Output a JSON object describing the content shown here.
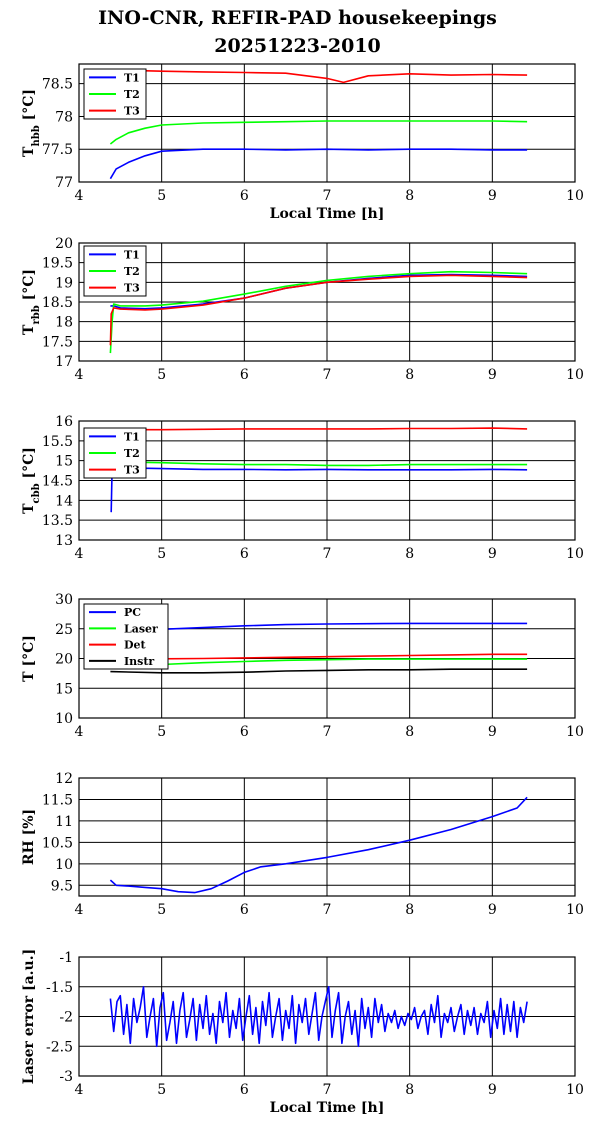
{
  "title": {
    "line1": "INO-CNR, REFIR-PAD housekeepings",
    "line2": "20251223-2010"
  },
  "chart_data": [
    {
      "type": "line",
      "ylabel_main": "T",
      "ylabel_sub": "hbb",
      "ylabel_unit": " [°C]",
      "xlabel": "Local Time [h]",
      "xlim": [
        4,
        10
      ],
      "ylim": [
        77,
        78.8
      ],
      "xticks": [
        "4",
        "5",
        "6",
        "7",
        "8",
        "9",
        "10"
      ],
      "yticks": [
        77,
        77.5,
        78,
        78.5
      ],
      "ytick_labels": [
        "77",
        "77.5",
        "78",
        "78.5"
      ],
      "legend": "top-left",
      "series": [
        {
          "name": "T1",
          "color": "#0000ff",
          "x": [
            4.38,
            4.45,
            4.6,
            4.8,
            5.0,
            5.5,
            6.0,
            6.5,
            7.0,
            7.5,
            8.0,
            8.5,
            9.0,
            9.42
          ],
          "y": [
            77.05,
            77.2,
            77.3,
            77.4,
            77.47,
            77.5,
            77.5,
            77.49,
            77.5,
            77.49,
            77.5,
            77.5,
            77.49,
            77.49
          ]
        },
        {
          "name": "T2",
          "color": "#00ff00",
          "x": [
            4.38,
            4.45,
            4.6,
            4.8,
            5.0,
            5.5,
            6.0,
            6.5,
            7.0,
            7.5,
            8.0,
            8.5,
            9.0,
            9.42
          ],
          "y": [
            77.58,
            77.65,
            77.75,
            77.82,
            77.87,
            77.9,
            77.91,
            77.92,
            77.93,
            77.93,
            77.93,
            77.93,
            77.93,
            77.92
          ]
        },
        {
          "name": "T3",
          "color": "#ff0000",
          "x": [
            4.7,
            5.0,
            5.5,
            6.0,
            6.5,
            7.0,
            7.2,
            7.5,
            8.0,
            8.5,
            9.0,
            9.42
          ],
          "y": [
            78.7,
            78.69,
            78.68,
            78.67,
            78.66,
            78.58,
            78.52,
            78.62,
            78.65,
            78.63,
            78.64,
            78.63
          ]
        }
      ]
    },
    {
      "type": "line",
      "ylabel_main": "T",
      "ylabel_sub": "rbb",
      "ylabel_unit": " [°C]",
      "xlabel": "",
      "xlim": [
        4,
        10
      ],
      "ylim": [
        17,
        20
      ],
      "xticks": [
        "4",
        "5",
        "6",
        "7",
        "8",
        "9",
        "10"
      ],
      "yticks": [
        17,
        17.5,
        18,
        18.5,
        19,
        19.5,
        20
      ],
      "ytick_labels": [
        "17",
        "17.5",
        "18",
        "18.5",
        "19",
        "19.5",
        "20"
      ],
      "legend": "top-left",
      "series": [
        {
          "name": "T1",
          "color": "#0000ff",
          "x": [
            4.38,
            4.42,
            4.5,
            4.8,
            5.0,
            5.5,
            6.0,
            6.5,
            7.0,
            7.5,
            8.0,
            8.5,
            9.0,
            9.42
          ],
          "y": [
            18.4,
            18.4,
            18.35,
            18.33,
            18.35,
            18.45,
            18.6,
            18.85,
            19.0,
            19.1,
            19.18,
            19.2,
            19.18,
            19.15
          ]
        },
        {
          "name": "T2",
          "color": "#00ff00",
          "x": [
            4.38,
            4.4,
            4.42,
            4.5,
            4.8,
            5.0,
            5.5,
            6.0,
            6.5,
            7.0,
            7.5,
            8.0,
            8.5,
            9.0,
            9.42
          ],
          "y": [
            17.2,
            18.0,
            18.45,
            18.4,
            18.4,
            18.42,
            18.52,
            18.7,
            18.9,
            19.05,
            19.15,
            19.22,
            19.27,
            19.25,
            19.22
          ]
        },
        {
          "name": "T3",
          "color": "#ff0000",
          "x": [
            4.38,
            4.39,
            4.42,
            4.5,
            4.8,
            5.0,
            5.5,
            6.0,
            6.5,
            7.0,
            7.5,
            8.0,
            8.5,
            9.0,
            9.42
          ],
          "y": [
            17.4,
            18.2,
            18.35,
            18.32,
            18.3,
            18.32,
            18.42,
            18.6,
            18.85,
            19.0,
            19.08,
            19.15,
            19.18,
            19.15,
            19.12
          ]
        }
      ]
    },
    {
      "type": "line",
      "ylabel_main": "T",
      "ylabel_sub": "cbb",
      "ylabel_unit": " [°C]",
      "xlabel": "",
      "xlim": [
        4,
        10
      ],
      "ylim": [
        13,
        16
      ],
      "xticks": [
        "4",
        "5",
        "6",
        "7",
        "8",
        "9",
        "10"
      ],
      "yticks": [
        13,
        13.5,
        14,
        14.5,
        15,
        15.5,
        16
      ],
      "ytick_labels": [
        "13",
        "13.5",
        "14",
        "14.5",
        "15",
        "15.5",
        "16"
      ],
      "legend": "top-left",
      "series": [
        {
          "name": "T1",
          "color": "#0000ff",
          "x": [
            4.39,
            4.4,
            4.42,
            4.5,
            5.0,
            5.5,
            6.0,
            6.5,
            7.0,
            7.5,
            8.0,
            8.5,
            9.0,
            9.42
          ],
          "y": [
            13.7,
            14.8,
            14.85,
            14.82,
            14.8,
            14.78,
            14.78,
            14.77,
            14.78,
            14.77,
            14.77,
            14.77,
            14.78,
            14.77
          ]
        },
        {
          "name": "T2",
          "color": "#00ff00",
          "x": [
            4.4,
            4.5,
            5.0,
            5.5,
            6.0,
            6.5,
            7.0,
            7.5,
            8.0,
            8.5,
            9.0,
            9.42
          ],
          "y": [
            14.95,
            14.97,
            14.95,
            14.92,
            14.9,
            14.9,
            14.88,
            14.88,
            14.9,
            14.9,
            14.9,
            14.9
          ]
        },
        {
          "name": "T3",
          "color": "#ff0000",
          "x": [
            4.8,
            5.0,
            5.5,
            6.0,
            6.5,
            7.0,
            7.5,
            8.0,
            8.5,
            9.0,
            9.42
          ],
          "y": [
            15.78,
            15.78,
            15.79,
            15.8,
            15.8,
            15.8,
            15.8,
            15.81,
            15.81,
            15.82,
            15.8
          ]
        }
      ]
    },
    {
      "type": "line",
      "ylabel_main": "T [°C]",
      "ylabel_sub": "",
      "ylabel_unit": "",
      "xlabel": "",
      "xlim": [
        4,
        10
      ],
      "ylim": [
        10,
        30
      ],
      "xticks": [
        "4",
        "5",
        "6",
        "7",
        "8",
        "9",
        "10"
      ],
      "yticks": [
        10,
        15,
        20,
        25,
        30
      ],
      "ytick_labels": [
        "10",
        "15",
        "20",
        "25",
        "30"
      ],
      "legend": "top-left",
      "series": [
        {
          "name": "PC",
          "color": "#0000ff",
          "x": [
            4.38,
            5.0,
            5.5,
            6.0,
            6.5,
            7.0,
            7.5,
            8.0,
            8.5,
            9.0,
            9.42
          ],
          "y": [
            24.4,
            24.9,
            25.2,
            25.5,
            25.7,
            25.8,
            25.85,
            25.9,
            25.9,
            25.9,
            25.9
          ]
        },
        {
          "name": "Laser",
          "color": "#00ff00",
          "x": [
            4.38,
            5.0,
            5.5,
            6.0,
            6.5,
            7.0,
            7.5,
            8.0,
            8.5,
            9.0,
            9.42
          ],
          "y": [
            19.0,
            19.0,
            19.3,
            19.5,
            19.7,
            19.8,
            19.9,
            19.9,
            19.9,
            19.9,
            19.9
          ]
        },
        {
          "name": "Det",
          "color": "#ff0000",
          "x": [
            4.38,
            5.0,
            5.5,
            6.0,
            6.5,
            7.0,
            7.5,
            8.0,
            8.5,
            9.0,
            9.42
          ],
          "y": [
            19.9,
            19.95,
            20.0,
            20.1,
            20.2,
            20.3,
            20.4,
            20.5,
            20.6,
            20.7,
            20.7
          ]
        },
        {
          "name": "Instr",
          "color": "#000000",
          "x": [
            4.38,
            5.0,
            5.5,
            6.0,
            6.5,
            7.0,
            7.5,
            8.0,
            8.5,
            9.0,
            9.42
          ],
          "y": [
            17.8,
            17.6,
            17.6,
            17.7,
            17.9,
            18.0,
            18.1,
            18.1,
            18.2,
            18.2,
            18.2
          ]
        }
      ]
    },
    {
      "type": "line",
      "ylabel_main": "RH [%]",
      "ylabel_sub": "",
      "ylabel_unit": "",
      "xlabel": "",
      "xlim": [
        4,
        10
      ],
      "ylim": [
        9.25,
        12
      ],
      "xticks": [
        "4",
        "5",
        "6",
        "7",
        "8",
        "9",
        "10"
      ],
      "yticks": [
        9.5,
        10,
        10.5,
        11,
        11.5,
        12
      ],
      "ytick_labels": [
        "9.5",
        "10",
        "10.5",
        "11",
        "11.5",
        "12"
      ],
      "legend": "none",
      "series": [
        {
          "name": "",
          "color": "#0000ff",
          "x": [
            4.38,
            4.45,
            4.6,
            4.8,
            5.0,
            5.2,
            5.4,
            5.6,
            5.8,
            6.0,
            6.2,
            6.5,
            7.0,
            7.5,
            8.0,
            8.5,
            9.0,
            9.3,
            9.42
          ],
          "y": [
            9.62,
            9.5,
            9.48,
            9.45,
            9.42,
            9.35,
            9.33,
            9.42,
            9.6,
            9.8,
            9.93,
            10.0,
            10.15,
            10.33,
            10.55,
            10.8,
            11.1,
            11.3,
            11.55
          ]
        }
      ]
    },
    {
      "type": "line",
      "ylabel_main": "Laser error [a.u.]",
      "ylabel_sub": "",
      "ylabel_unit": "",
      "xlabel": "Local Time [h]",
      "xlim": [
        4,
        10
      ],
      "ylim": [
        -3,
        -1
      ],
      "xticks": [
        "4",
        "5",
        "6",
        "7",
        "8",
        "9",
        "10"
      ],
      "yticks": [
        -3,
        -2.5,
        -2,
        -1.5,
        -1
      ],
      "ytick_labels": [
        "-3",
        "-2.5",
        "-2",
        "-1.5",
        "-1"
      ],
      "legend": "none",
      "series": [
        {
          "name": "",
          "color": "#0000ff",
          "x": [
            4.38,
            4.42,
            4.46,
            4.5,
            4.54,
            4.58,
            4.62,
            4.66,
            4.7,
            4.74,
            4.78,
            4.82,
            4.86,
            4.9,
            4.94,
            4.98,
            5.02,
            5.06,
            5.1,
            5.14,
            5.18,
            5.22,
            5.26,
            5.3,
            5.34,
            5.38,
            5.42,
            5.46,
            5.5,
            5.54,
            5.58,
            5.62,
            5.66,
            5.7,
            5.74,
            5.78,
            5.82,
            5.86,
            5.9,
            5.94,
            5.98,
            6.02,
            6.06,
            6.1,
            6.14,
            6.18,
            6.22,
            6.26,
            6.3,
            6.34,
            6.38,
            6.42,
            6.46,
            6.5,
            6.54,
            6.58,
            6.62,
            6.66,
            6.7,
            6.74,
            6.78,
            6.82,
            6.86,
            6.9,
            6.94,
            6.98,
            7.02,
            7.06,
            7.1,
            7.14,
            7.18,
            7.22,
            7.26,
            7.3,
            7.34,
            7.38,
            7.42,
            7.46,
            7.5,
            7.54,
            7.58,
            7.62,
            7.66,
            7.7,
            7.74,
            7.78,
            7.82,
            7.86,
            7.9,
            7.94,
            7.98,
            8.02,
            8.06,
            8.1,
            8.14,
            8.18,
            8.22,
            8.26,
            8.3,
            8.34,
            8.38,
            8.42,
            8.46,
            8.5,
            8.54,
            8.58,
            8.62,
            8.66,
            8.7,
            8.74,
            8.78,
            8.82,
            8.86,
            8.9,
            8.94,
            8.98,
            9.02,
            9.06,
            9.1,
            9.14,
            9.18,
            9.22,
            9.26,
            9.3,
            9.34,
            9.38,
            9.42
          ],
          "y": [
            -1.7,
            -2.25,
            -1.75,
            -1.65,
            -2.3,
            -1.8,
            -2.45,
            -1.7,
            -2.1,
            -1.85,
            -1.5,
            -2.35,
            -2.0,
            -1.7,
            -2.5,
            -1.85,
            -1.6,
            -2.4,
            -2.1,
            -1.75,
            -2.45,
            -1.9,
            -1.6,
            -2.35,
            -2.05,
            -1.7,
            -2.4,
            -1.8,
            -2.2,
            -1.65,
            -2.3,
            -1.95,
            -2.45,
            -1.75,
            -2.1,
            -1.6,
            -2.35,
            -1.9,
            -2.2,
            -1.7,
            -2.4,
            -2.0,
            -1.65,
            -2.3,
            -1.85,
            -2.45,
            -1.75,
            -2.15,
            -1.6,
            -2.35,
            -2.0,
            -1.7,
            -2.4,
            -1.9,
            -2.2,
            -1.65,
            -2.45,
            -1.8,
            -2.1,
            -1.7,
            -2.3,
            -1.95,
            -1.6,
            -2.4,
            -2.0,
            -1.75,
            -1.5,
            -2.35,
            -1.9,
            -1.6,
            -2.45,
            -2.0,
            -1.75,
            -2.3,
            -1.9,
            -2.5,
            -1.7,
            -2.2,
            -1.85,
            -2.35,
            -1.7,
            -2.1,
            -1.8,
            -2.25,
            -1.95,
            -2.1,
            -1.9,
            -2.2,
            -2.0,
            -2.15,
            -1.95,
            -2.05,
            -1.85,
            -2.2,
            -2.0,
            -1.9,
            -2.3,
            -1.8,
            -2.1,
            -1.65,
            -2.35,
            -1.95,
            -2.1,
            -1.85,
            -2.25,
            -2.0,
            -1.8,
            -2.3,
            -1.9,
            -2.15,
            -1.85,
            -2.3,
            -1.95,
            -2.1,
            -1.75,
            -2.35,
            -1.9,
            -2.2,
            -1.7,
            -2.3,
            -1.8,
            -2.25,
            -1.75,
            -2.35,
            -1.85,
            -2.1,
            -1.75
          ]
        }
      ]
    }
  ]
}
